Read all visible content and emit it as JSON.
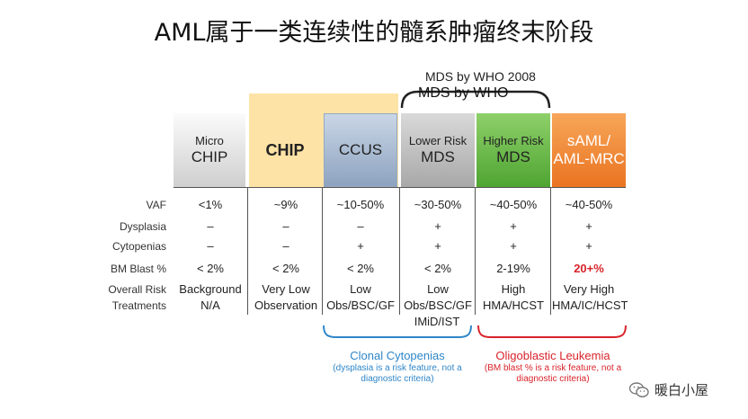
{
  "title": "AML属于一类连续性的髓系肿瘤终末阶段",
  "who_2008": "MDS by WHO 2008",
  "who": "MDS by WHO",
  "headers": [
    {
      "line1": "Micro",
      "line2": "CHIP"
    },
    {
      "line1": "",
      "line2": "CHIP"
    },
    {
      "line1": "",
      "line2": "CCUS"
    },
    {
      "line1": "Lower Risk",
      "line2": "MDS"
    },
    {
      "line1": "Higher Risk",
      "line2": "MDS"
    },
    {
      "line1": "sAML/",
      "line2": "AML-MRC"
    }
  ],
  "row_labels": [
    "VAF",
    "Dysplasia",
    "Cytopenias",
    "BM Blast %",
    "Overall Risk",
    "Treatments"
  ],
  "rows": [
    [
      "<1%",
      "~9%",
      "~10-50%",
      "~30-50%",
      "~40-50%",
      "~40-50%"
    ],
    [
      "–",
      "–",
      "–",
      "+",
      "+",
      "+"
    ],
    [
      "–",
      "–",
      "+",
      "+",
      "+",
      "+"
    ],
    [
      "< 2%",
      "< 2%",
      "< 2%",
      "< 2%",
      "2-19%",
      "20+%"
    ],
    [
      "Background",
      "Very Low",
      "Low",
      "Low",
      "High",
      "Very High"
    ],
    [
      "N/A",
      "Observation",
      "Obs/BSC/GF",
      "Obs/BSC/GF",
      "HMA/HCST",
      "HMA/IC/HCST"
    ]
  ],
  "treatment_extra": "IMiD/IST",
  "clonal": {
    "title": "Clonal Cytopenias",
    "note1": "(dysplasia is a risk feature, not a",
    "note2": "diagnostic criteria)"
  },
  "oligo": {
    "title": "Oligoblastic Leukemia",
    "note1": "(BM blast % is a risk feature, not a",
    "note2": "diagnostic criteria)"
  },
  "watermark": "暖白小屋",
  "colors": {
    "chip_bg": "#fde3a6",
    "clonal_blue": "#2e86c9",
    "oligo_red": "#d8232a",
    "highlight_red": "#d8232a"
  }
}
